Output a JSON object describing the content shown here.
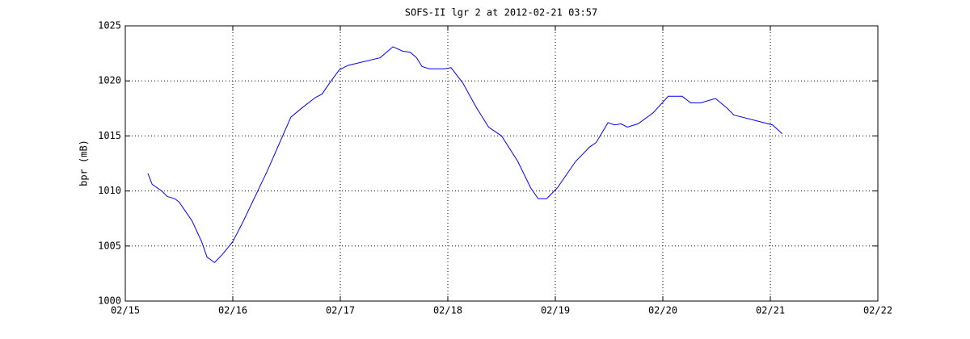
{
  "chart_data": {
    "type": "line",
    "title": "SOFS-II lgr 2 at 2012-02-21 03:57",
    "y_label": "bpr (mB)",
    "x": [
      15.21,
      15.25,
      15.34,
      15.39,
      15.46,
      15.5,
      15.62,
      15.71,
      15.76,
      15.83,
      15.9,
      16.0,
      16.09,
      16.32,
      16.54,
      16.65,
      16.77,
      16.83,
      16.9,
      16.99,
      17.07,
      17.37,
      17.43,
      17.49,
      17.58,
      17.65,
      17.71,
      17.76,
      17.83,
      17.97,
      18.03,
      18.14,
      18.27,
      18.38,
      18.5,
      18.65,
      18.77,
      18.84,
      18.92,
      19.02,
      19.19,
      19.32,
      19.38,
      19.49,
      19.55,
      19.61,
      19.67,
      19.77,
      19.91,
      20.05,
      20.18,
      20.26,
      20.35,
      20.49,
      20.6,
      20.66,
      21.02,
      21.11
    ],
    "series": [
      {
        "name": "bpr",
        "color": "#0000ff",
        "values": [
          1011.6,
          1010.6,
          1010.0,
          1009.5,
          1009.3,
          1009.0,
          1007.3,
          1005.4,
          1004.0,
          1003.5,
          1004.2,
          1005.4,
          1007.1,
          1011.8,
          1016.7,
          1017.6,
          1018.5,
          1018.8,
          1019.8,
          1021.0,
          1021.4,
          1022.1,
          1022.6,
          1023.1,
          1022.7,
          1022.6,
          1022.1,
          1021.3,
          1021.1,
          1021.1,
          1021.2,
          1019.8,
          1017.5,
          1015.8,
          1015.0,
          1012.7,
          1010.3,
          1009.3,
          1009.3,
          1010.3,
          1012.7,
          1014.0,
          1014.4,
          1016.2,
          1016.0,
          1016.1,
          1015.8,
          1016.1,
          1017.1,
          1018.6,
          1018.6,
          1018.0,
          1018.0,
          1018.4,
          1017.5,
          1016.9,
          1016.0,
          1015.2
        ]
      }
    ],
    "xlim": [
      15,
      22
    ],
    "xticks": [
      {
        "value": 15,
        "label": "02/15"
      },
      {
        "value": 16,
        "label": "02/16"
      },
      {
        "value": 17,
        "label": "02/17"
      },
      {
        "value": 18,
        "label": "02/18"
      },
      {
        "value": 19,
        "label": "02/19"
      },
      {
        "value": 20,
        "label": "02/20"
      },
      {
        "value": 21,
        "label": "02/21"
      },
      {
        "value": 22,
        "label": "02/22"
      }
    ],
    "ylim": [
      1000,
      1025
    ],
    "yticks": [
      1000,
      1005,
      1010,
      1015,
      1020,
      1025
    ],
    "grid": true
  }
}
